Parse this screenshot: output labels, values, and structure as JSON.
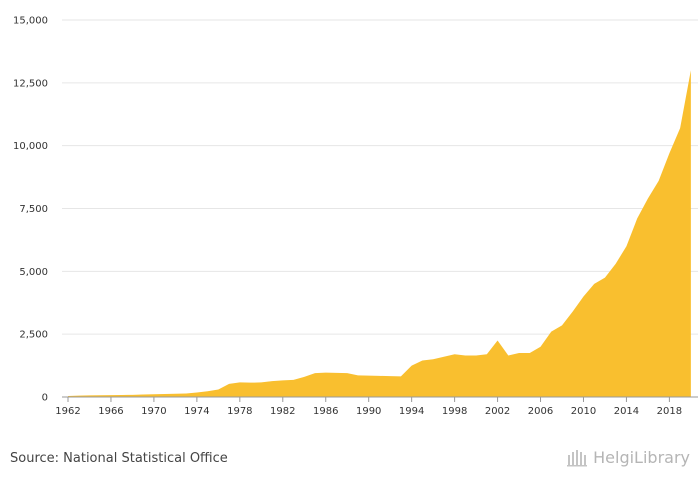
{
  "chart_data": {
    "type": "area",
    "title": "",
    "xlabel": "",
    "ylabel": "",
    "x": [
      1962,
      1963,
      1964,
      1965,
      1966,
      1967,
      1968,
      1969,
      1970,
      1971,
      1972,
      1973,
      1974,
      1975,
      1976,
      1977,
      1978,
      1979,
      1980,
      1981,
      1982,
      1983,
      1984,
      1985,
      1986,
      1987,
      1988,
      1989,
      1990,
      1991,
      1992,
      1993,
      1994,
      1995,
      1996,
      1997,
      1998,
      1999,
      2000,
      2001,
      2002,
      2003,
      2004,
      2005,
      2006,
      2007,
      2008,
      2009,
      2010,
      2011,
      2012,
      2013,
      2014,
      2015,
      2016,
      2017,
      2018,
      2019,
      2020
    ],
    "values": [
      40,
      55,
      65,
      70,
      75,
      80,
      85,
      100,
      110,
      120,
      130,
      140,
      180,
      230,
      300,
      520,
      580,
      570,
      580,
      630,
      660,
      680,
      800,
      950,
      970,
      960,
      950,
      860,
      850,
      840,
      830,
      820,
      1250,
      1450,
      1500,
      1600,
      1700,
      1650,
      1650,
      1700,
      2250,
      1650,
      1750,
      1750,
      2000,
      2600,
      2850,
      3400,
      4000,
      4500,
      4750,
      5300,
      6000,
      7100,
      7900,
      8600,
      9700,
      10700,
      13000
    ],
    "xticks": [
      "1962",
      "1966",
      "1970",
      "1974",
      "1978",
      "1982",
      "1986",
      "1990",
      "1994",
      "1998",
      "2002",
      "2006",
      "2010",
      "2014",
      "2018"
    ],
    "yticks": [
      "0",
      "2,500",
      "5,000",
      "7,500",
      "10,000",
      "12,500",
      "15,000"
    ],
    "ylim": [
      0,
      15000
    ],
    "grid": true,
    "color": "#f9bf2f"
  },
  "footer": {
    "source": "Source: National Statistical Office",
    "brand": "HelgiLibrary"
  }
}
